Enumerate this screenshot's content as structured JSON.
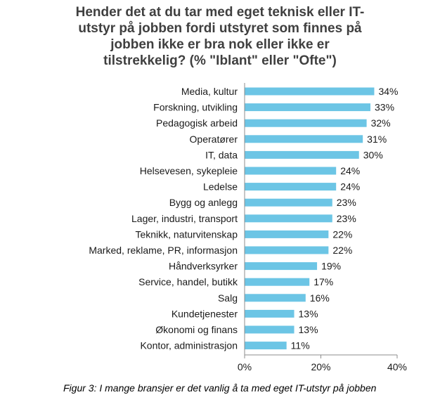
{
  "chart_data": {
    "type": "bar",
    "orientation": "horizontal",
    "title_lines": [
      "Hender det at du tar med eget teknisk eller IT-",
      "utstyr på jobben fordi utstyret som finnes på",
      "jobben ikke er bra nok eller ikke er",
      "tilstrekkelig? (% \"Iblant\" eller \"Ofte\")"
    ],
    "categories": [
      "Media, kultur",
      "Forskning, utvikling",
      "Pedagogisk arbeid",
      "Operatører",
      "IT, data",
      "Helsevesen, sykepleie",
      "Ledelse",
      "Bygg og anlegg",
      "Lager, industri, transport",
      "Teknikk, naturvitenskap",
      "Marked, reklame, PR, informasjon",
      "Håndverksyrker",
      "Service, handel, butikk",
      "Salg",
      "Kundetjenester",
      "Økonomi og finans",
      "Kontor, administrasjon"
    ],
    "values": [
      34,
      33,
      32,
      31,
      30,
      24,
      24,
      23,
      23,
      22,
      22,
      19,
      17,
      16,
      13,
      13,
      11
    ],
    "value_labels": [
      "34%",
      "33%",
      "32%",
      "31%",
      "30%",
      "24%",
      "24%",
      "23%",
      "23%",
      "22%",
      "22%",
      "19%",
      "17%",
      "16%",
      "13%",
      "13%",
      "11%"
    ],
    "xlim": [
      0,
      40
    ],
    "x_ticks": [
      0,
      20,
      40
    ],
    "x_tick_labels": [
      "0%",
      "20%",
      "40%"
    ],
    "bar_color": "#6cc5e5",
    "grid": false,
    "legend": "none"
  },
  "caption": "Figur 3: I mange bransjer er det vanlig å ta med eget IT-utstyr på jobben"
}
